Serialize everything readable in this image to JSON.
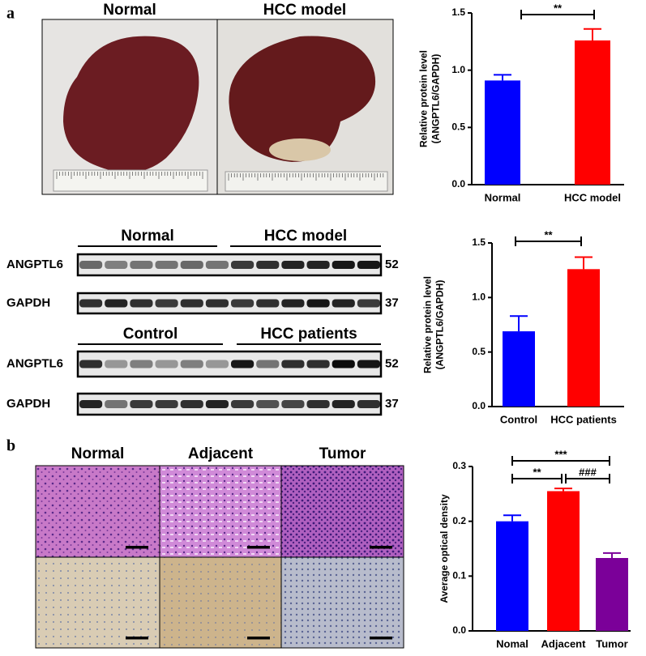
{
  "panel_labels": [
    "a",
    "b"
  ],
  "photos": {
    "labels": [
      "Normal",
      "HCC model"
    ]
  },
  "blots": [
    {
      "groups": [
        "Normal",
        "HCC model"
      ],
      "rows": [
        {
          "label": "ANGPTL6",
          "size": 52
        },
        {
          "label": "GAPDH",
          "size": 37
        }
      ]
    },
    {
      "groups": [
        "Control",
        "HCC patients"
      ],
      "rows": [
        {
          "label": "ANGPTL6",
          "size": 52
        },
        {
          "label": "GAPDH",
          "size": 37
        }
      ]
    }
  ],
  "histology": {
    "labels": [
      "Normal",
      "Adjacent",
      "Tumor"
    ]
  },
  "chart_data": [
    {
      "type": "bar",
      "ylabel": [
        "Relative protein level",
        "(ANGPTL6/GAPDH)"
      ],
      "categories": [
        "Normal",
        "HCC model"
      ],
      "values": [
        0.91,
        1.26
      ],
      "errors": [
        0.05,
        0.1
      ],
      "colors": [
        "#0000ff",
        "#ff0000"
      ],
      "ylim": [
        0,
        1.5
      ],
      "yticks": [
        {
          "value": 0,
          "label": "0.0"
        },
        0.5,
        {
          "value": 1,
          "label": "1.0"
        },
        1.5
      ],
      "significance": [
        "**"
      ]
    },
    {
      "type": "bar",
      "ylabel": [
        "Relative protein level",
        "(ANGPTL6/GAPDH)"
      ],
      "categories": [
        "Control",
        "HCC patients"
      ],
      "values": [
        0.69,
        1.26
      ],
      "errors": [
        0.14,
        0.11
      ],
      "colors": [
        "#0000ff",
        "#ff0000"
      ],
      "ylim": [
        0,
        1.5
      ],
      "yticks": [
        {
          "value": 0,
          "label": "0.0"
        },
        0.5,
        {
          "value": 1,
          "label": "1.0"
        },
        1.5
      ],
      "significance": [
        "**"
      ]
    },
    {
      "type": "bar",
      "ylabel": [
        "Average optical density"
      ],
      "categories": [
        "Nomal",
        "Adjacent",
        "Tumor"
      ],
      "values": [
        0.2,
        0.255,
        0.133
      ],
      "errors": [
        0.011,
        0.005,
        0.009
      ],
      "colors": [
        "#0000ff",
        "#ff0000",
        "#7b0099"
      ],
      "ylim": [
        0,
        0.3
      ],
      "yticks": [
        {
          "value": 0,
          "label": "0.0"
        },
        0.1,
        0.2,
        0.3
      ],
      "significance": [
        "***",
        "**",
        "###"
      ]
    }
  ]
}
